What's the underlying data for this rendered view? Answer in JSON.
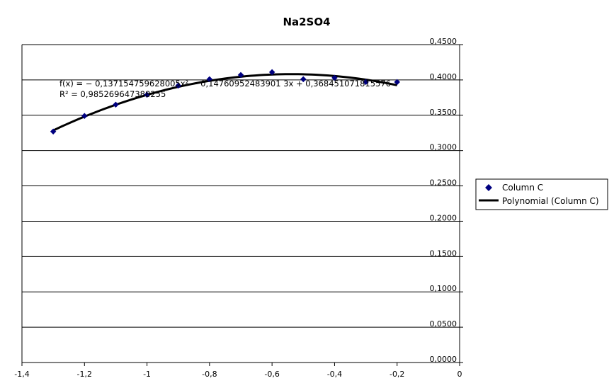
{
  "chart_data": {
    "type": "scatter",
    "title": "Na2SO4",
    "xlabel": "",
    "ylabel": "",
    "xlim": [
      -1.4,
      0
    ],
    "ylim": [
      0,
      0.45
    ],
    "x_ticks": [
      -1.4,
      -1.2,
      -1,
      -0.8,
      -0.6,
      -0.4,
      -0.2,
      0
    ],
    "x_tick_labels": [
      "-1,4",
      "-1,2",
      "-1",
      "-0,8",
      "-0,6",
      "-0,4",
      "-0,2",
      "0"
    ],
    "y_ticks": [
      0,
      0.05,
      0.1,
      0.15,
      0.2,
      0.25,
      0.3,
      0.35,
      0.4,
      0.45
    ],
    "y_tick_labels": [
      "0,0000",
      "0,0500",
      "0,1000",
      "0,1500",
      "0,2000",
      "0,2500",
      "0,3000",
      "0,3500",
      "0,4000",
      "0,4500"
    ],
    "grid": "horizontal",
    "legend": "right",
    "series": [
      {
        "name": "Column C",
        "kind": "scatter",
        "color": "#000080",
        "x": [
          -1.3,
          -1.2,
          -1.1,
          -1.0,
          -0.9,
          -0.8,
          -0.7,
          -0.6,
          -0.5,
          -0.4,
          -0.3,
          -0.2
        ],
        "y": [
          0.327,
          0.349,
          0.365,
          0.379,
          0.392,
          0.401,
          0.407,
          0.411,
          0.401,
          0.403,
          0.397,
          0.397
        ]
      },
      {
        "name": "Polynomial (Column C)",
        "kind": "trendline",
        "color": "#000000",
        "coefficients": [
          -0.137154759628005,
          -0.14760952483901,
          0.368451071815576
        ]
      }
    ],
    "annotation": {
      "equation": "f(x) = − 0,137154759628005x² − 0,14760952483901 3x + 0,368451071815576",
      "r_squared": "R² = 0,985269647388255"
    }
  }
}
